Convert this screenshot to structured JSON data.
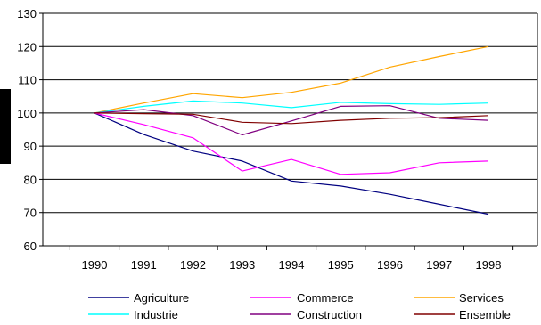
{
  "chart_data": {
    "type": "line",
    "title": "",
    "xlabel": "",
    "ylabel": "",
    "x": [
      "1990",
      "1991",
      "1992",
      "1993",
      "1994",
      "1995",
      "1996",
      "1997",
      "1998"
    ],
    "ylim": [
      60,
      130
    ],
    "yticks": [
      60,
      70,
      80,
      90,
      100,
      110,
      120,
      130
    ],
    "grid": "horizontal",
    "legend_position": "bottom",
    "series": [
      {
        "name": "Agriculture",
        "color": "#000080",
        "values": [
          100,
          93.5,
          88.5,
          85.5,
          79.5,
          78,
          75.5,
          72.5,
          69.5
        ]
      },
      {
        "name": "Commerce",
        "color": "#FF00FF",
        "values": [
          100,
          96.5,
          92.5,
          82.5,
          86,
          81.5,
          82,
          85,
          85.5
        ]
      },
      {
        "name": "Services",
        "color": "#FFA500",
        "values": [
          100,
          103,
          105.8,
          104.6,
          106.2,
          109,
          113.8,
          117,
          120
        ]
      },
      {
        "name": "Industrie",
        "color": "#00FFFF",
        "values": [
          100,
          102,
          103.6,
          103,
          101.6,
          103.2,
          102.8,
          102.6,
          103
        ]
      },
      {
        "name": "Construction",
        "color": "#800080",
        "values": [
          100,
          101,
          99.2,
          93.4,
          97.6,
          102,
          102.2,
          98.4,
          97.8
        ]
      },
      {
        "name": "Ensemble",
        "color": "#800000",
        "values": [
          100,
          99.8,
          99.6,
          97.2,
          96.8,
          97.8,
          98.4,
          98.6,
          99.2
        ]
      }
    ]
  }
}
